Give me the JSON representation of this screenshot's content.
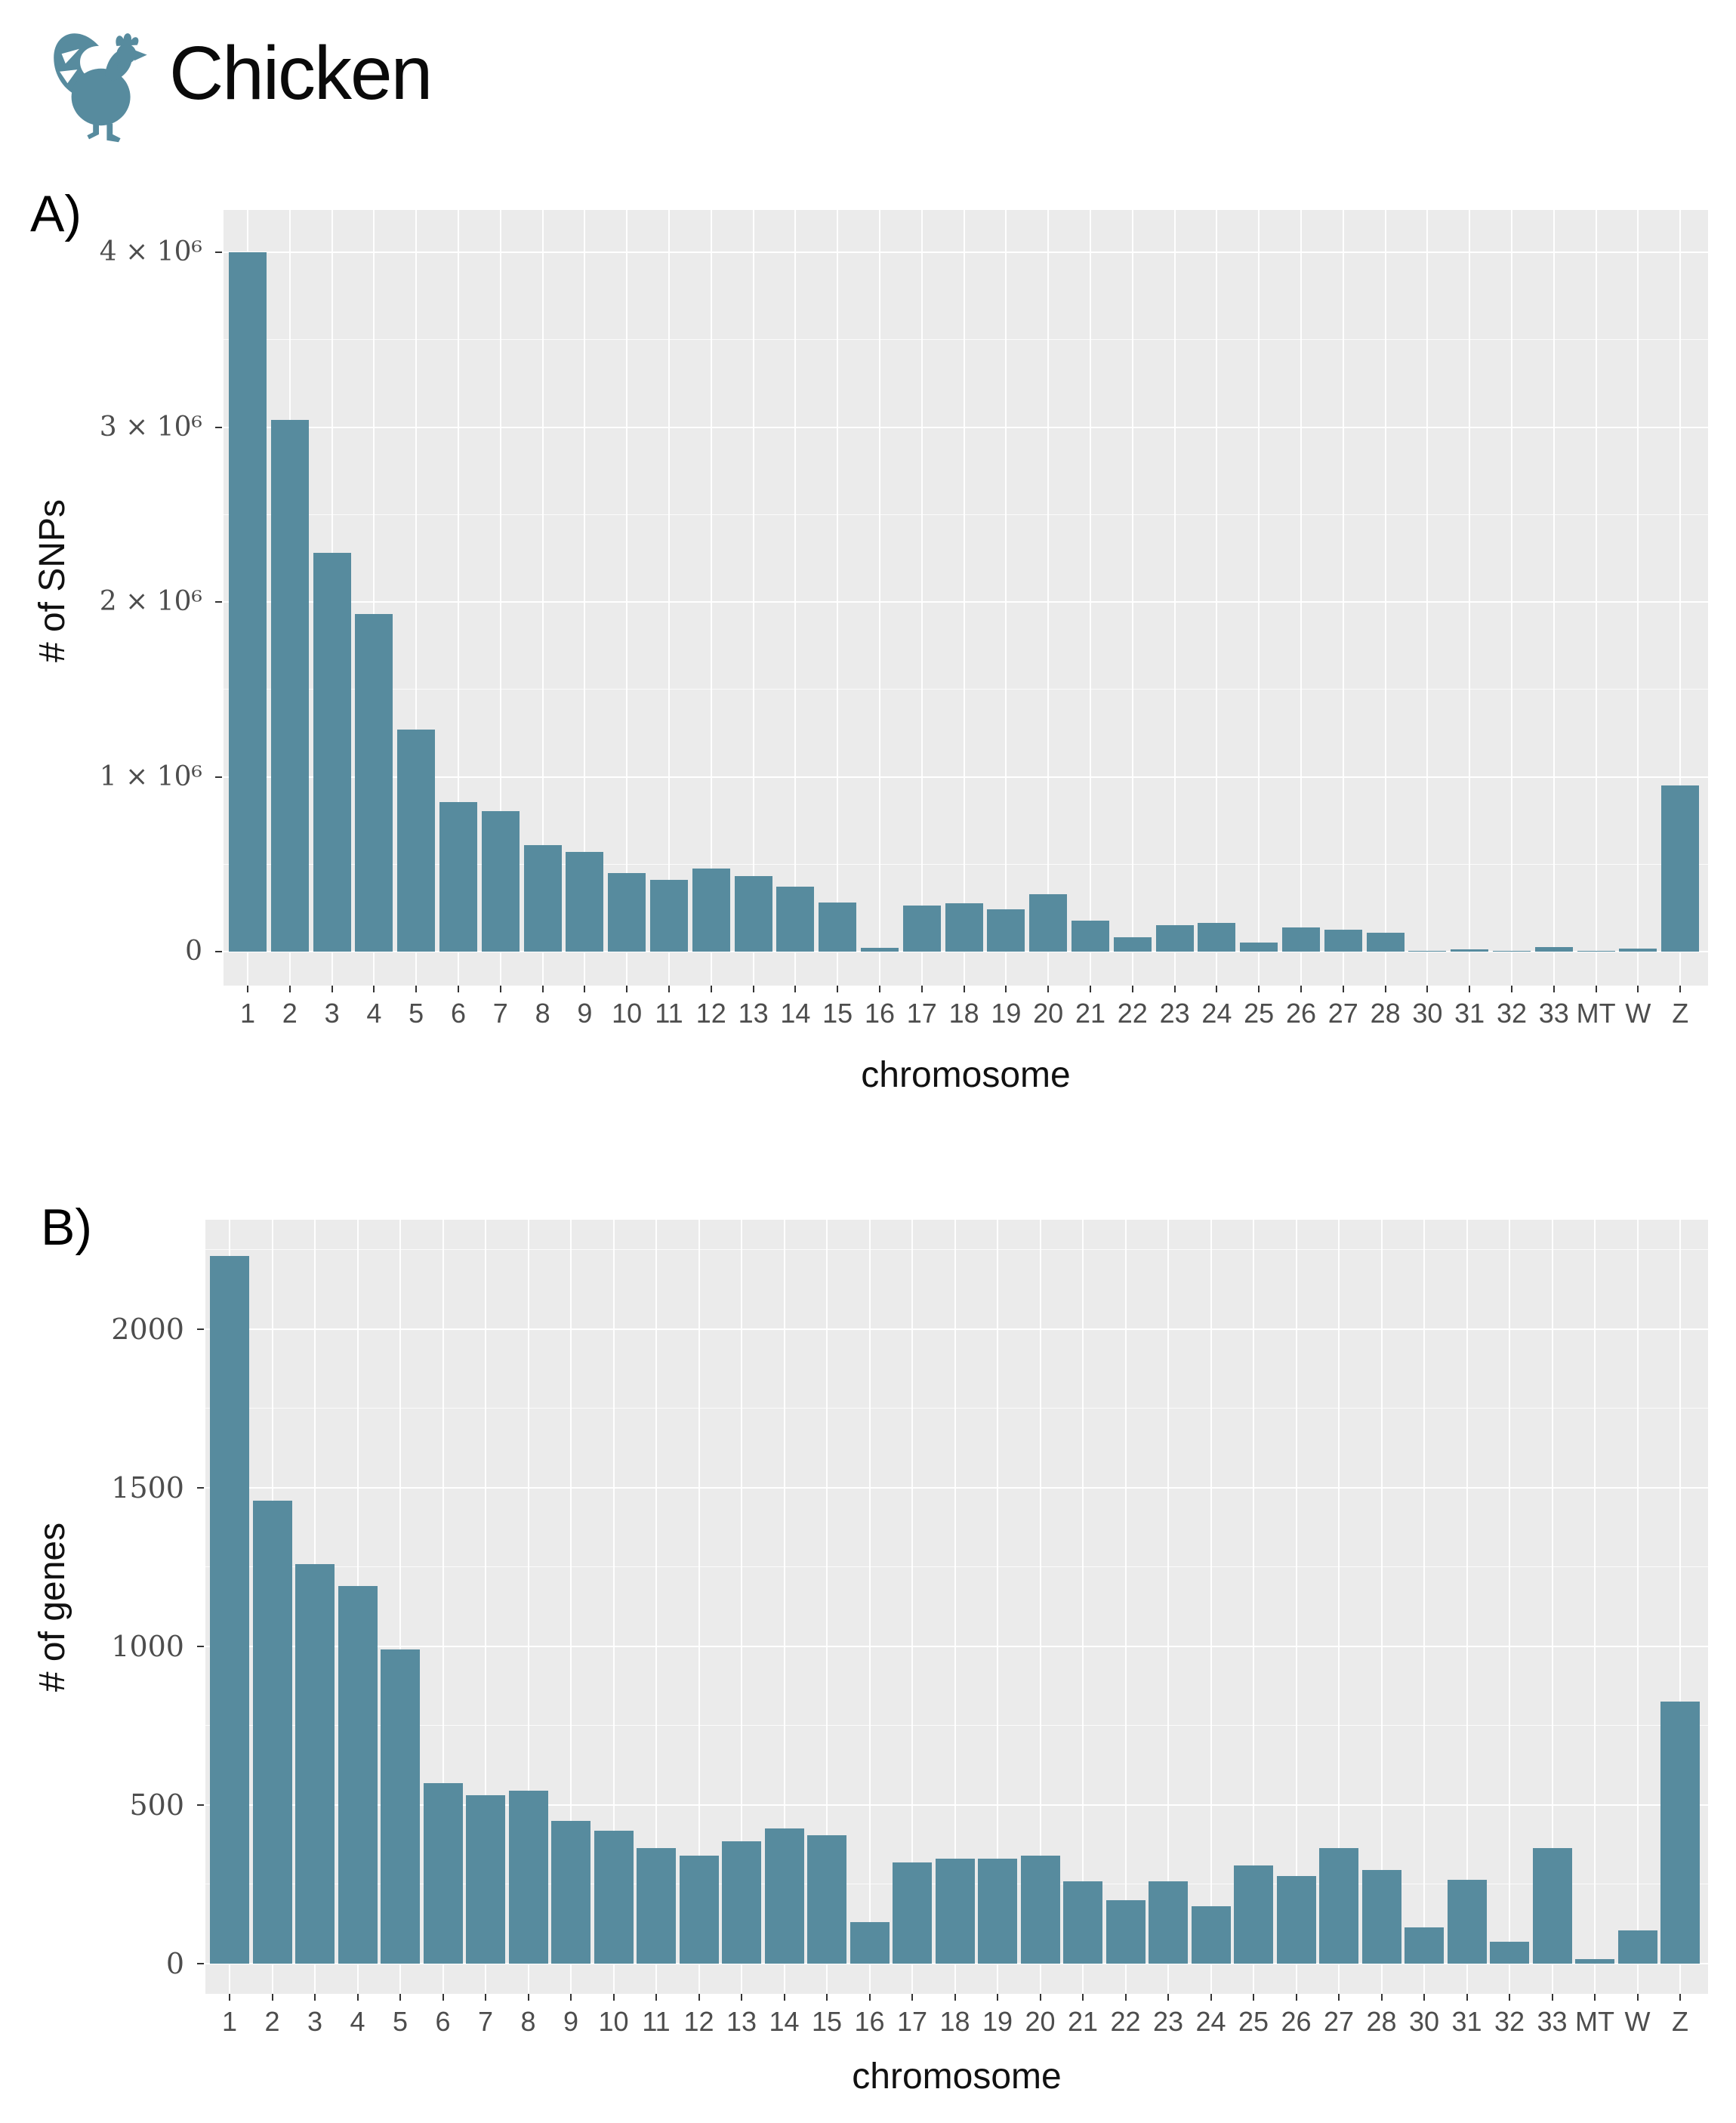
{
  "header": {
    "title": "Chicken",
    "logo_icon": "rooster-icon",
    "accent_color": "#578B9E"
  },
  "colors": {
    "bar": "#578B9E",
    "panel_background": "#EBEBEB",
    "grid_major": "#FFFFFF",
    "tick_label": "#4D4D4D",
    "text": "#111111"
  },
  "chart_data": [
    {
      "type": "bar",
      "panel_label": "A)",
      "title": "",
      "xlabel": "chromosome",
      "ylabel": "# of SNPs",
      "categories": [
        "1",
        "2",
        "3",
        "4",
        "5",
        "6",
        "7",
        "8",
        "9",
        "10",
        "11",
        "12",
        "13",
        "14",
        "15",
        "16",
        "17",
        "18",
        "19",
        "20",
        "21",
        "22",
        "23",
        "24",
        "25",
        "26",
        "27",
        "28",
        "30",
        "31",
        "32",
        "33",
        "MT",
        "W",
        "Z"
      ],
      "values": [
        4000000,
        3040000,
        2280000,
        1930000,
        1270000,
        855000,
        805000,
        610000,
        570000,
        450000,
        410000,
        475000,
        430000,
        370000,
        280000,
        20000,
        265000,
        275000,
        240000,
        330000,
        175000,
        80000,
        150000,
        165000,
        50000,
        140000,
        125000,
        110000,
        4000,
        12000,
        3000,
        28000,
        2000,
        18000,
        950000
      ],
      "ytick_values": [
        0,
        1000000,
        2000000,
        3000000,
        4000000
      ],
      "ytick_labels": [
        "0",
        "1 × 10⁶",
        "2 × 10⁶",
        "3 × 10⁶",
        "4 × 10⁶"
      ],
      "ylim": [
        0,
        4242000
      ],
      "grid": true,
      "legend": false,
      "bar_color": "#578B9E"
    },
    {
      "type": "bar",
      "panel_label": "B)",
      "title": "",
      "xlabel": "chromosome",
      "ylabel": "# of genes",
      "categories": [
        "1",
        "2",
        "3",
        "4",
        "5",
        "6",
        "7",
        "8",
        "9",
        "10",
        "11",
        "12",
        "13",
        "14",
        "15",
        "16",
        "17",
        "18",
        "19",
        "20",
        "21",
        "22",
        "23",
        "24",
        "25",
        "26",
        "27",
        "28",
        "30",
        "31",
        "32",
        "33",
        "MT",
        "W",
        "Z"
      ],
      "values": [
        2230,
        1460,
        1260,
        1190,
        990,
        570,
        530,
        545,
        450,
        420,
        365,
        340,
        385,
        425,
        405,
        130,
        320,
        330,
        330,
        340,
        260,
        200,
        260,
        180,
        310,
        275,
        365,
        295,
        115,
        265,
        70,
        365,
        15,
        105,
        825
      ],
      "ytick_values": [
        0,
        500,
        1000,
        1500,
        2000
      ],
      "ytick_labels": [
        "0",
        "500",
        "1000",
        "1500",
        "2000"
      ],
      "ylim": [
        0,
        2345
      ],
      "grid": true,
      "legend": false,
      "bar_color": "#578B9E"
    }
  ]
}
